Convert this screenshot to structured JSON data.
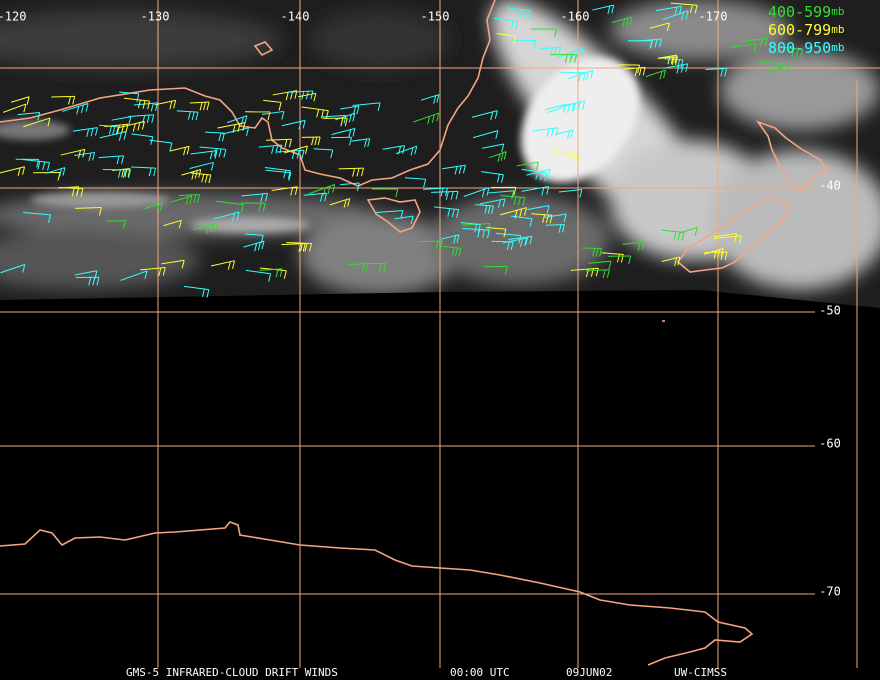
{
  "longitude_labels": [
    "-120",
    "-130",
    "-140",
    "-150",
    "-160",
    "-170"
  ],
  "latitude_labels": [
    "-40",
    "-50",
    "-60",
    "-70"
  ],
  "legend": [
    {
      "label": "400-599",
      "unit": "mb",
      "color": "#33dd33"
    },
    {
      "label": "600-799",
      "unit": "mb",
      "color": "#ffff33"
    },
    {
      "label": "800-950",
      "unit": "mb",
      "color": "#33ffff"
    }
  ],
  "footer": {
    "product": "GMS-5 INFRARED-CLOUD DRIFT WINDS",
    "time": "00:00 UTC",
    "date": "09JUN02",
    "source": "UW-CIMSS"
  }
}
